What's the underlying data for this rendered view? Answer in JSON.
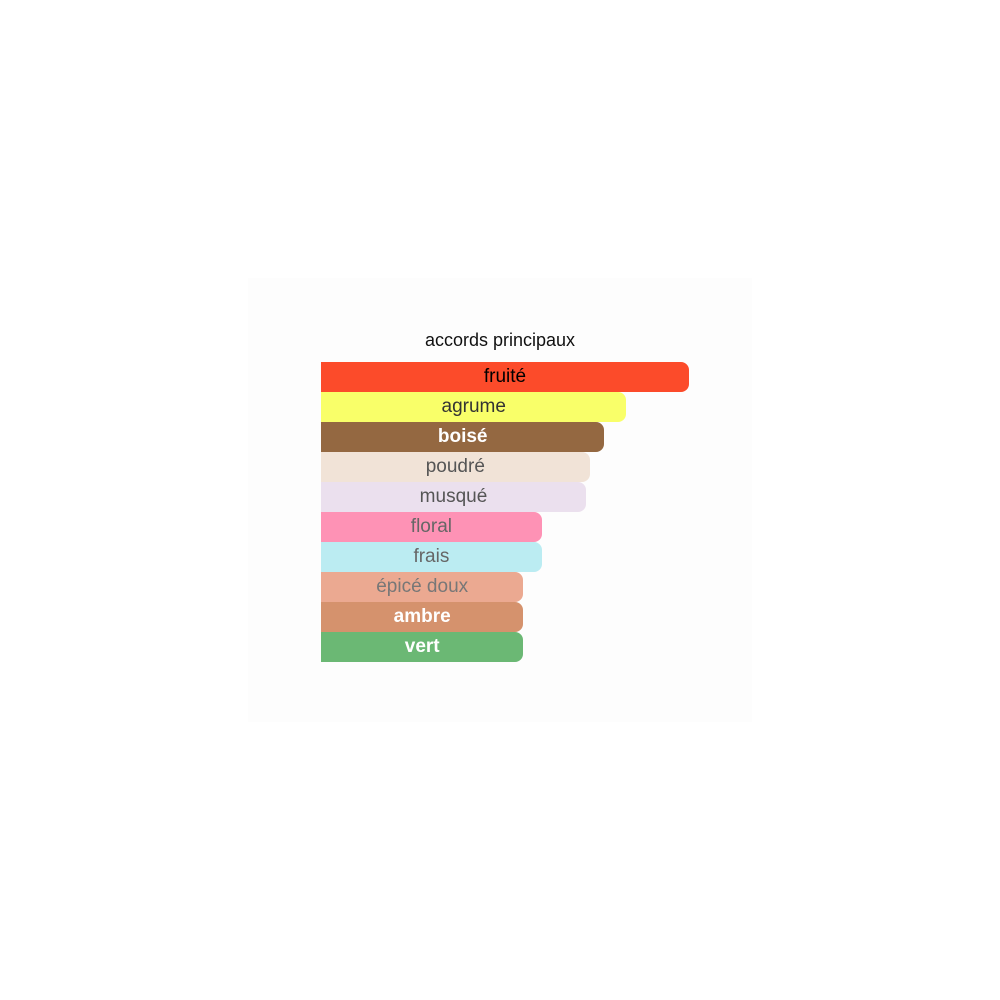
{
  "chart_data": {
    "type": "bar",
    "orientation": "horizontal",
    "title": "accords principaux",
    "unit": "percent of strongest accord",
    "categories": [
      "fruité",
      "agrume",
      "boisé",
      "poudré",
      "musqué",
      "floral",
      "frais",
      "épicé doux",
      "ambre",
      "vert"
    ],
    "values": [
      100,
      83,
      77,
      73,
      72,
      60,
      60,
      55,
      55,
      55
    ],
    "colors": [
      "#fc4b2a",
      "#f9ff69",
      "#946841",
      "#f1e3d7",
      "#ebe0ee",
      "#fe92b5",
      "#bbecf2",
      "#eba991",
      "#d5926d",
      "#6bb874"
    ],
    "label_colors": [
      "#000000",
      "#333333",
      "#ffffff",
      "#555555",
      "#555555",
      "#666666",
      "#666666",
      "#777777",
      "#ffffff",
      "#ffffff"
    ],
    "label_bold": [
      false,
      false,
      true,
      false,
      false,
      false,
      false,
      false,
      true,
      true
    ]
  }
}
